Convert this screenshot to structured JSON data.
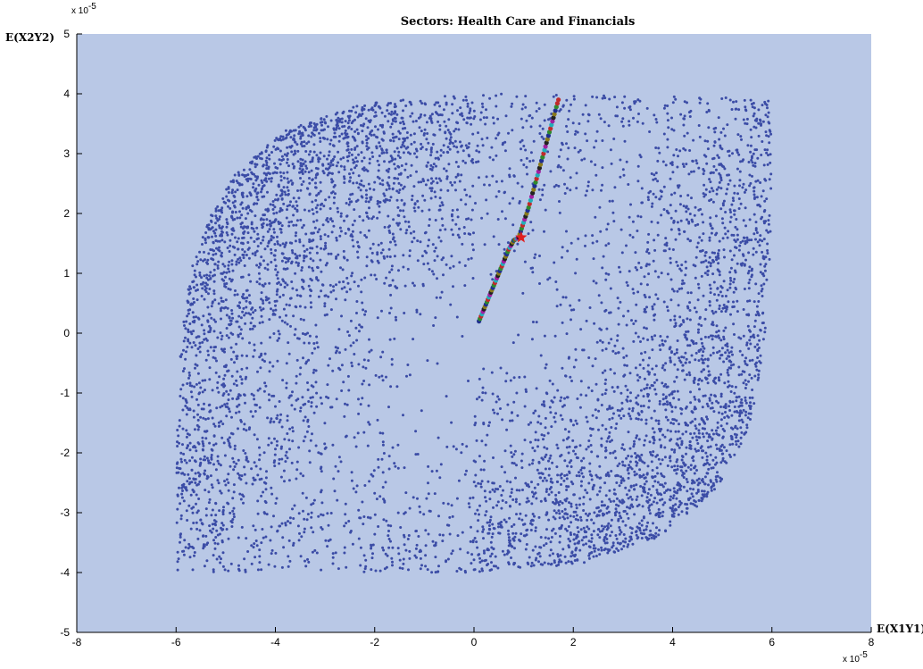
{
  "chart_data": {
    "type": "scatter",
    "title": "Sectors: Health Care  and Financials",
    "xlabel": "E(X1Y1)",
    "ylabel": "E(X2Y2)",
    "xlim": [
      -8,
      8
    ],
    "ylim": [
      -5,
      5
    ],
    "x_ticks": [
      "-8",
      "-6",
      "-4",
      "-2",
      "0",
      "2",
      "4",
      "6",
      "8"
    ],
    "y_ticks": [
      "-5",
      "-4",
      "-3",
      "-2",
      "-1",
      "0",
      "1",
      "2",
      "3",
      "4",
      "5"
    ],
    "x_exponent": "x 10",
    "x_exponent_power": "-5",
    "y_exponent": "x 10",
    "y_exponent_power": "-5",
    "grid": false,
    "colors": {
      "plot_background": "#b9c8e6",
      "figure_background": "#ffffff",
      "cloud_points": "#3b4ca6",
      "path_colors": [
        "#1f2f8f",
        "#2e8a2e",
        "#c02a2a",
        "#20b0b8",
        "#a020a0",
        "#222222",
        "#8a7a1a"
      ],
      "highlight": "#e02020"
    },
    "series": [
      {
        "name": "",
        "description_type": "feasible_region_cloud",
        "boundary_vertices": [
          [
            -6.0,
            -4.0
          ],
          [
            -6.0,
            -2.0
          ],
          [
            -5.9,
            0.0
          ],
          [
            -5.6,
            1.5
          ],
          [
            -4.9,
            2.6
          ],
          [
            -3.8,
            3.4
          ],
          [
            -2.2,
            3.85
          ],
          [
            0.0,
            4.0
          ],
          [
            6.0,
            4.0
          ],
          [
            6.0,
            2.0
          ],
          [
            5.9,
            0.0
          ],
          [
            5.6,
            -1.5
          ],
          [
            4.9,
            -2.6
          ],
          [
            3.8,
            -3.4
          ],
          [
            2.2,
            -3.85
          ],
          [
            0.0,
            -4.0
          ]
        ],
        "approx_point_count": 6000
      },
      {
        "name": "",
        "description_type": "path",
        "x": [
          0.1,
          0.2,
          0.3,
          0.4,
          0.5,
          0.6,
          0.7,
          0.8,
          0.9,
          1.0,
          1.1,
          1.2,
          1.3,
          1.4,
          1.5,
          1.6,
          1.7
        ],
        "y": [
          0.2,
          0.4,
          0.6,
          0.8,
          1.0,
          1.2,
          1.4,
          1.55,
          1.6,
          1.85,
          2.1,
          2.4,
          2.7,
          3.0,
          3.3,
          3.6,
          3.9
        ]
      },
      {
        "name": "",
        "description_type": "highlight_star",
        "x": [
          0.95
        ],
        "y": [
          1.6
        ]
      }
    ]
  }
}
